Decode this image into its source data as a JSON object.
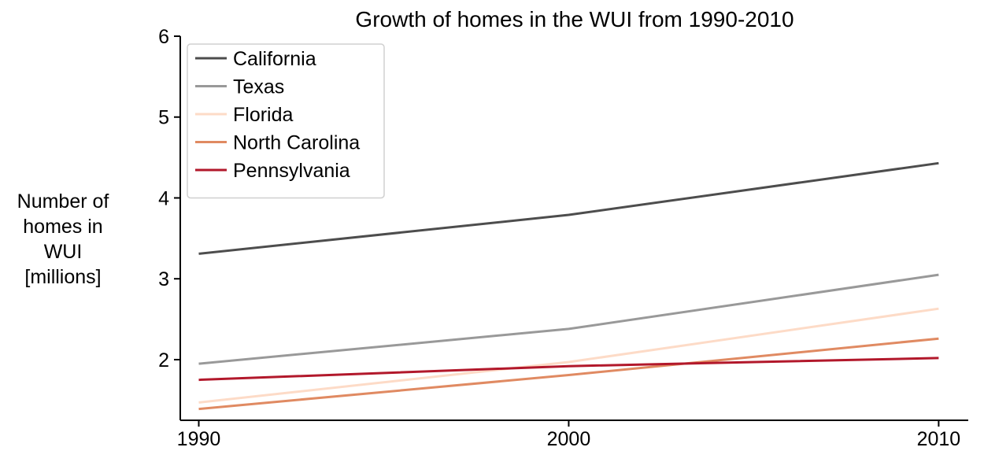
{
  "chart_data": {
    "type": "line",
    "title": "Growth of homes in the WUI from 1990-2010",
    "xlabel": "",
    "ylabel_lines": [
      "Number of",
      "homes in",
      "WUI",
      "[millions]"
    ],
    "x": [
      1990,
      2000,
      2010
    ],
    "x_ticks": [
      1990,
      2000,
      2010
    ],
    "x_tick_labels": [
      "1990",
      "2000",
      "2010"
    ],
    "xlim": [
      1989.5,
      2010.8
    ],
    "y_ticks": [
      2,
      3,
      4,
      5,
      6
    ],
    "y_tick_labels": [
      "2",
      "3",
      "4",
      "5",
      "6"
    ],
    "ylim": [
      1.25,
      6.0
    ],
    "grid": false,
    "legend_position": "top-left",
    "series": [
      {
        "name": "California",
        "color": "#4d4d4d",
        "values": [
          3.31,
          3.79,
          4.43
        ]
      },
      {
        "name": "Texas",
        "color": "#999999",
        "values": [
          1.95,
          2.38,
          3.05
        ]
      },
      {
        "name": "Florida",
        "color": "#fddbc7",
        "values": [
          1.47,
          1.97,
          2.63
        ]
      },
      {
        "name": "North Carolina",
        "color": "#e08a62",
        "values": [
          1.39,
          1.81,
          2.26
        ]
      },
      {
        "name": "Pennsylvania",
        "color": "#b2182b",
        "values": [
          1.75,
          1.92,
          2.02
        ]
      }
    ]
  }
}
